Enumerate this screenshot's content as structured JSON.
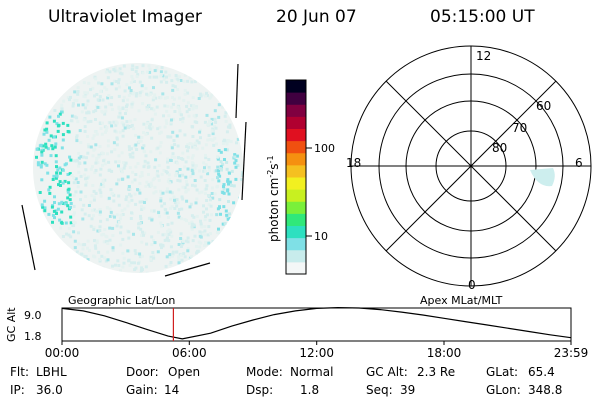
{
  "header": {
    "instrument": "Ultraviolet Imager",
    "date": "20 Jun 07",
    "time": "05:15:00 UT"
  },
  "colorbar": {
    "unit_label": "photon cm",
    "unit_exp1": "-2",
    "unit_mid": "s",
    "unit_exp2": "-1",
    "ticks": [
      "100",
      "10"
    ],
    "scale": "log",
    "colors": [
      "#f4f7f7",
      "#c8ecec",
      "#7fe0e6",
      "#2de0c0",
      "#30e87a",
      "#7af03a",
      "#c8f020",
      "#f2f020",
      "#f5c020",
      "#f59010",
      "#f05010",
      "#e01020",
      "#b00030",
      "#800040",
      "#400040",
      "#000020"
    ]
  },
  "polar_plot": {
    "mlt_labels": [
      "12",
      "18",
      "6",
      "0"
    ],
    "mlat_labels": [
      "60",
      "70",
      "80"
    ]
  },
  "timeline": {
    "ylabel": "GC Alt",
    "yticks": [
      "9.0",
      "1.8"
    ],
    "left_label": "Geographic Lat/Lon",
    "right_label": "Apex MLat/MLT",
    "xticks": [
      "00:00",
      "06:00",
      "12:00",
      "18:00",
      "23:59"
    ],
    "current_time": "05:15"
  },
  "chart_data": {
    "type": "line",
    "title": "",
    "xlabel": "",
    "ylabel": "GC Alt",
    "xlim": [
      "00:00",
      "23:59"
    ],
    "ylim": [
      1.0,
      9.0
    ],
    "series": [
      {
        "x": [
          "00:00",
          "01:00",
          "02:00",
          "03:00",
          "04:00",
          "05:00",
          "05:40",
          "07:00",
          "08:00",
          "09:00",
          "10:00",
          "11:00",
          "12:00",
          "13:00",
          "14:00",
          "15:00",
          "16:00",
          "17:00",
          "18:00",
          "19:00",
          "20:00",
          "21:00",
          "22:00",
          "23:00",
          "23:59"
        ],
        "values": [
          8.9,
          8.3,
          7.1,
          5.5,
          3.8,
          2.2,
          1.5,
          2.9,
          4.6,
          6.1,
          7.4,
          8.3,
          8.9,
          9.1,
          9.0,
          8.6,
          8.0,
          7.3,
          6.5,
          5.7,
          4.9,
          4.1,
          3.3,
          2.5,
          1.8
        ]
      }
    ],
    "current_time_marker": "05:15"
  },
  "info": {
    "row1": [
      {
        "label": "Flt:",
        "value": "LBHL"
      },
      {
        "label": "Door:",
        "value": "Open"
      },
      {
        "label": "Mode:",
        "value": "Normal"
      },
      {
        "label": "GC Alt:",
        "value": "2.3 Re"
      },
      {
        "label": "GLat:",
        "value": "65.4"
      }
    ],
    "row2": [
      {
        "label": "IP:",
        "value": "36.0"
      },
      {
        "label": "Gain:",
        "value": "14"
      },
      {
        "label": "Dsp:",
        "value": "1.8"
      },
      {
        "label": "Seq:",
        "value": "39"
      },
      {
        "label": "GLon:",
        "value": "348.8"
      }
    ]
  }
}
